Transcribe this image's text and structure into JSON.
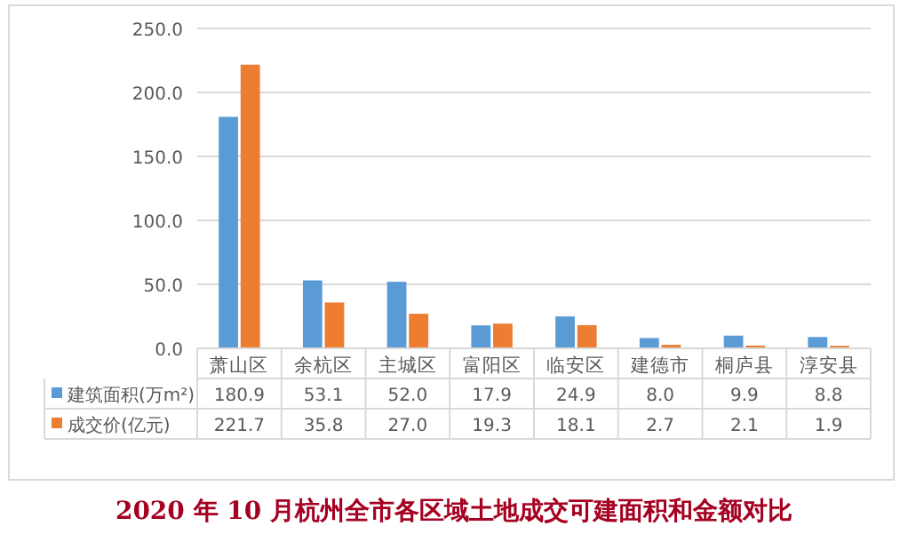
{
  "chart_data": {
    "type": "bar",
    "title": "2020 年 10 月杭州全市各区域土地成交可建面积和金额对比",
    "categories": [
      "萧山区",
      "余杭区",
      "主城区",
      "富阳区",
      "临安区",
      "建德市",
      "桐庐县",
      "淳安县"
    ],
    "series": [
      {
        "name": "建筑面积(万m²)",
        "color": "#5b9bd5",
        "values": [
          180.9,
          53.1,
          52.0,
          17.9,
          24.9,
          8.0,
          9.9,
          8.8
        ],
        "value_labels": [
          "180.9",
          "53.1",
          "52.0",
          "17.9",
          "24.9",
          "8.0",
          "9.9",
          "8.8"
        ]
      },
      {
        "name": "成交价(亿元)",
        "color": "#ed7d31",
        "values": [
          221.7,
          35.8,
          27.0,
          19.3,
          18.1,
          2.7,
          2.1,
          1.9
        ],
        "value_labels": [
          "221.7",
          "35.8",
          "27.0",
          "19.3",
          "18.1",
          "2.7",
          "2.1",
          "1.9"
        ]
      }
    ],
    "ylim": [
      0,
      250
    ],
    "yticks": [
      {
        "value": 0,
        "label": "0.0"
      },
      {
        "value": 50,
        "label": "50.0"
      },
      {
        "value": 100,
        "label": "100.0"
      },
      {
        "value": 150,
        "label": "150.0"
      },
      {
        "value": 200,
        "label": "200.0"
      },
      {
        "value": 250,
        "label": "250.0"
      }
    ],
    "grid": "y",
    "legend": "bottom"
  }
}
